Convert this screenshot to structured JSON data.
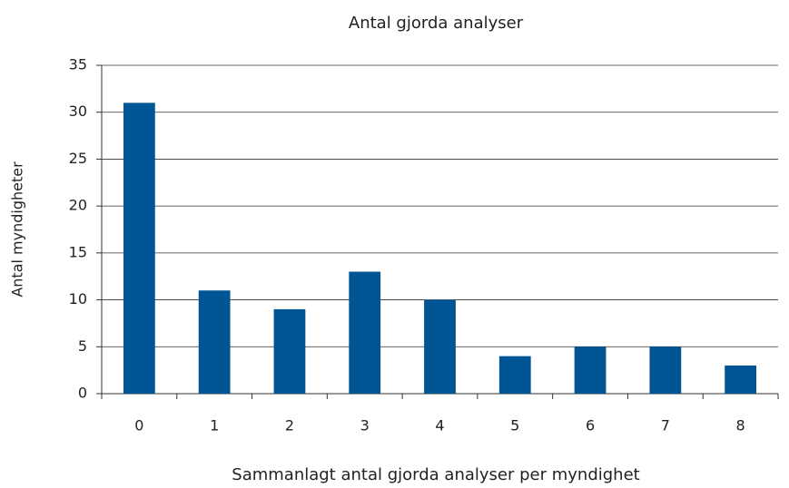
{
  "chart_data": {
    "type": "bar",
    "title": "Antal gjorda analyser",
    "x_label": "Sammanlagt antal gjorda analyser per myndighet",
    "y_label": "Antal myndigheter",
    "categories": [
      "0",
      "1",
      "2",
      "3",
      "4",
      "5",
      "6",
      "7",
      "8"
    ],
    "values": [
      31,
      11,
      9,
      13,
      10,
      4,
      5,
      5,
      3
    ],
    "color": "#005594",
    "ylim": [
      0,
      35
    ],
    "yticks": [
      0,
      5,
      10,
      15,
      20,
      25,
      30,
      35
    ],
    "grid": true
  }
}
